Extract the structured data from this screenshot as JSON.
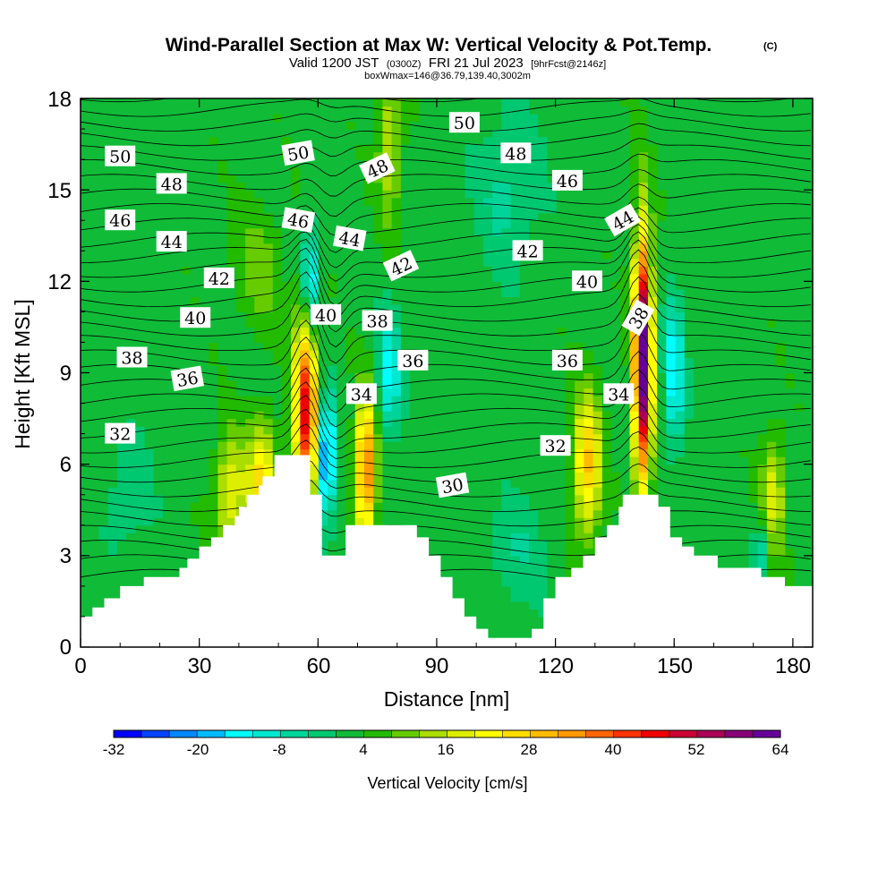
{
  "chart_data": {
    "type": "heatmap",
    "title": "Wind-Parallel Section at Max W: Vertical Velocity & Pot.Temp.",
    "copyright": "(C)",
    "subtitle_parts": [
      "Valid 1200 JST",
      "(0300Z)",
      "FRI 21 Jul 2023",
      "[9hrFcst@2146z]"
    ],
    "subtitle2": "boxWmax=146@36.79,139.40,3002m",
    "xlabel": "Distance [nm]",
    "ylabel": "Height [Kft MSL]",
    "xlim": [
      0,
      185
    ],
    "ylim": [
      0,
      18
    ],
    "x_ticks": [
      "0",
      "30",
      "60",
      "90",
      "120",
      "150",
      "180"
    ],
    "y_ticks": [
      "0",
      "3",
      "6",
      "9",
      "12",
      "15",
      "18"
    ],
    "colorbar": {
      "title": "Vertical Velocity [cm/s]",
      "min": -32,
      "max": 64,
      "step": 4,
      "tick_labels": [
        "-32",
        "-20",
        "-8",
        "4",
        "16",
        "28",
        "40",
        "52",
        "64"
      ],
      "colors": [
        "#0000ff",
        "#0044ff",
        "#0088ff",
        "#00bbff",
        "#00ffff",
        "#00e8d0",
        "#00d49a",
        "#00c870",
        "#10bb38",
        "#22bb00",
        "#66cc00",
        "#aadd00",
        "#ddee00",
        "#ffff00",
        "#ffdd00",
        "#ffbb00",
        "#ff9900",
        "#ff6600",
        "#ff3300",
        "#ee0000",
        "#cc0033",
        "#aa0055",
        "#880077",
        "#660099"
      ]
    },
    "terrain_profile": [
      [
        0,
        1.0
      ],
      [
        3,
        1.0
      ],
      [
        3,
        1.3
      ],
      [
        6,
        1.3
      ],
      [
        6,
        1.6
      ],
      [
        10,
        1.6
      ],
      [
        10,
        2.0
      ],
      [
        16,
        2.0
      ],
      [
        16,
        2.3
      ],
      [
        25,
        2.3
      ],
      [
        25,
        2.6
      ],
      [
        27,
        2.6
      ],
      [
        27,
        2.9
      ],
      [
        30,
        2.9
      ],
      [
        30,
        3.3
      ],
      [
        33,
        3.3
      ],
      [
        33,
        3.6
      ],
      [
        36,
        3.6
      ],
      [
        36,
        4.0
      ],
      [
        39,
        4.0
      ],
      [
        39,
        4.3
      ],
      [
        40,
        4.3
      ],
      [
        40,
        4.6
      ],
      [
        42,
        4.6
      ],
      [
        42,
        5.0
      ],
      [
        45,
        5.0
      ],
      [
        45,
        5.3
      ],
      [
        46,
        5.3
      ],
      [
        46,
        5.6
      ],
      [
        49,
        5.6
      ],
      [
        49,
        6.0
      ],
      [
        49,
        6.3
      ],
      [
        58,
        6.3
      ],
      [
        58,
        5.0
      ],
      [
        61,
        5.0
      ],
      [
        61,
        3.0
      ],
      [
        67,
        3.0
      ],
      [
        67,
        4.0
      ],
      [
        85,
        4.0
      ],
      [
        85,
        3.6
      ],
      [
        88,
        3.6
      ],
      [
        88,
        3.0
      ],
      [
        91,
        3.0
      ],
      [
        91,
        2.3
      ],
      [
        94,
        2.3
      ],
      [
        94,
        1.6
      ],
      [
        97,
        1.6
      ],
      [
        97,
        1.0
      ],
      [
        100,
        1.0
      ],
      [
        100,
        0.6
      ],
      [
        103,
        0.6
      ],
      [
        103,
        0.3
      ],
      [
        114,
        0.3
      ],
      [
        114,
        0.6
      ],
      [
        117,
        0.6
      ],
      [
        117,
        1.6
      ],
      [
        120,
        1.6
      ],
      [
        120,
        2.3
      ],
      [
        124,
        2.3
      ],
      [
        124,
        2.6
      ],
      [
        127,
        2.6
      ],
      [
        127,
        3.0
      ],
      [
        130,
        3.0
      ],
      [
        130,
        3.6
      ],
      [
        133,
        3.6
      ],
      [
        133,
        4.0
      ],
      [
        136,
        4.0
      ],
      [
        136,
        4.6
      ],
      [
        137,
        4.6
      ],
      [
        137,
        5.0
      ],
      [
        146,
        5.0
      ],
      [
        146,
        4.6
      ],
      [
        149,
        4.6
      ],
      [
        149,
        3.6
      ],
      [
        152,
        3.6
      ],
      [
        152,
        3.3
      ],
      [
        155,
        3.3
      ],
      [
        155,
        3.0
      ],
      [
        161,
        3.0
      ],
      [
        161,
        2.6
      ],
      [
        172,
        2.6
      ],
      [
        172,
        2.3
      ],
      [
        178,
        2.3
      ],
      [
        178,
        2.0
      ],
      [
        185,
        2.0
      ]
    ],
    "vertical_velocity_features": [
      {
        "x": 57,
        "z": 7.8,
        "w": 44,
        "sx": 3.0,
        "sz": 3.2
      },
      {
        "x": 38,
        "z": 5.0,
        "w": 18,
        "sx": 4.0,
        "sz": 2.0
      },
      {
        "x": 46,
        "z": 5.5,
        "w": 22,
        "sx": 3.5,
        "sz": 2.0
      },
      {
        "x": 62,
        "z": 6.2,
        "w": -30,
        "sx": 2.2,
        "sz": 2.0
      },
      {
        "x": 58,
        "z": 12.0,
        "w": -26,
        "sx": 1.8,
        "sz": 1.8
      },
      {
        "x": 72,
        "z": 5.8,
        "w": 36,
        "sx": 2.6,
        "sz": 2.4
      },
      {
        "x": 78,
        "z": 9.0,
        "w": -16,
        "sx": 3.0,
        "sz": 2.0
      },
      {
        "x": 78,
        "z": 16.5,
        "w": 14,
        "sx": 3.0,
        "sz": 2.5
      },
      {
        "x": 142,
        "z": 9.5,
        "w": 64,
        "sx": 2.3,
        "sz": 4.0
      },
      {
        "x": 128,
        "z": 6.0,
        "w": 26,
        "sx": 3.5,
        "sz": 2.3
      },
      {
        "x": 150,
        "z": 9.0,
        "w": -18,
        "sx": 2.5,
        "sz": 2.5
      },
      {
        "x": 175,
        "z": 5.0,
        "w": 16,
        "sx": 3.0,
        "sz": 2.0
      },
      {
        "x": 172,
        "z": 3.2,
        "w": -12,
        "sx": 2.0,
        "sz": 1.0
      },
      {
        "x": 108,
        "z": 15.0,
        "w": -8,
        "sx": 8.0,
        "sz": 2.5
      },
      {
        "x": 45,
        "z": 12.5,
        "w": 8,
        "sx": 6.0,
        "sz": 2.0
      },
      {
        "x": 12,
        "z": 5.0,
        "w": -6,
        "sx": 6.0,
        "sz": 2.0
      },
      {
        "x": 110,
        "z": 3.0,
        "w": -6,
        "sx": 8.0,
        "sz": 2.0
      }
    ],
    "theta_labels": [
      {
        "text": "50",
        "x": 10,
        "z": 16.1,
        "angle": 0
      },
      {
        "text": "48",
        "x": 23,
        "z": 15.2,
        "angle": 0
      },
      {
        "text": "46",
        "x": 10,
        "z": 14.0,
        "angle": 0
      },
      {
        "text": "44",
        "x": 23,
        "z": 13.3,
        "angle": 0
      },
      {
        "text": "42",
        "x": 35,
        "z": 12.1,
        "angle": 0
      },
      {
        "text": "40",
        "x": 29,
        "z": 10.8,
        "angle": 0
      },
      {
        "text": "38",
        "x": 13,
        "z": 9.5,
        "angle": 0
      },
      {
        "text": "36",
        "x": 27,
        "z": 8.8,
        "angle": -10
      },
      {
        "text": "32",
        "x": 10,
        "z": 7.0,
        "angle": 0
      },
      {
        "text": "50",
        "x": 55,
        "z": 16.2,
        "angle": -10
      },
      {
        "text": "48",
        "x": 75,
        "z": 15.7,
        "angle": -25
      },
      {
        "text": "46",
        "x": 55,
        "z": 14.0,
        "angle": 10
      },
      {
        "text": "44",
        "x": 68,
        "z": 13.4,
        "angle": 10
      },
      {
        "text": "42",
        "x": 81,
        "z": 12.5,
        "angle": -25
      },
      {
        "text": "40",
        "x": 62,
        "z": 10.9,
        "angle": 0
      },
      {
        "text": "38",
        "x": 75,
        "z": 10.7,
        "angle": 0
      },
      {
        "text": "36",
        "x": 84,
        "z": 9.4,
        "angle": 0
      },
      {
        "text": "34",
        "x": 71,
        "z": 8.3,
        "angle": 0
      },
      {
        "text": "30",
        "x": 94,
        "z": 5.3,
        "angle": -10
      },
      {
        "text": "50",
        "x": 97,
        "z": 17.2,
        "angle": 0
      },
      {
        "text": "48",
        "x": 110,
        "z": 16.2,
        "angle": 0
      },
      {
        "text": "46",
        "x": 123,
        "z": 15.3,
        "angle": 0
      },
      {
        "text": "42",
        "x": 113,
        "z": 13.0,
        "angle": 0
      },
      {
        "text": "40",
        "x": 128,
        "z": 12.0,
        "angle": 0
      },
      {
        "text": "36",
        "x": 123,
        "z": 9.4,
        "angle": 0
      },
      {
        "text": "32",
        "x": 120,
        "z": 6.6,
        "angle": 0
      },
      {
        "text": "44",
        "x": 137,
        "z": 14.0,
        "angle": -30
      },
      {
        "text": "38",
        "x": 141,
        "z": 10.8,
        "angle": -60
      },
      {
        "text": "34",
        "x": 136,
        "z": 8.3,
        "angle": 0
      }
    ]
  }
}
